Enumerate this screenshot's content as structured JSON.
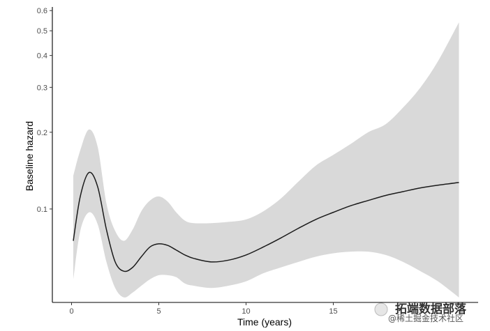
{
  "chart_data": {
    "type": "line",
    "xlabel": "Time (years)",
    "ylabel": "Baseline hazard",
    "y_scale": "log",
    "xlim": [
      -1.1,
      23.3
    ],
    "ylim": [
      0.043,
      0.62
    ],
    "x_ticks": [
      0,
      5,
      10,
      15
    ],
    "x_tick_labels": [
      "0",
      "5",
      "10",
      "15"
    ],
    "y_ticks": [
      0.1,
      0.2,
      0.3,
      0.4,
      0.5,
      0.6
    ],
    "y_tick_labels": [
      "0.1",
      "0.2",
      "0.3",
      "0.4",
      "0.5",
      "0.6"
    ],
    "grid": false,
    "legend": "none",
    "line_color": "#1a1a1a",
    "band_color": "#d9d9d9",
    "series": [
      {
        "x": [
          0.1,
          0.5,
          1.0,
          1.5,
          2.0,
          2.5,
          3.0,
          3.5,
          4.0,
          4.5,
          5.0,
          5.5,
          6.0,
          6.5,
          7.0,
          8.0,
          9.0,
          10.0,
          11.0,
          12.0,
          13.0,
          14.0,
          15.0,
          16.0,
          17.0,
          18.0,
          19.0,
          20.0,
          21.0,
          22.2
        ],
        "y": [
          0.075,
          0.112,
          0.139,
          0.122,
          0.083,
          0.062,
          0.057,
          0.059,
          0.065,
          0.071,
          0.073,
          0.072,
          0.069,
          0.066,
          0.064,
          0.062,
          0.063,
          0.066,
          0.071,
          0.077,
          0.084,
          0.091,
          0.097,
          0.103,
          0.108,
          0.113,
          0.117,
          0.121,
          0.124,
          0.127
        ],
        "lower": [
          0.053,
          0.082,
          0.097,
          0.087,
          0.062,
          0.049,
          0.045,
          0.047,
          0.05,
          0.053,
          0.055,
          0.055,
          0.054,
          0.051,
          0.05,
          0.049,
          0.05,
          0.052,
          0.056,
          0.059,
          0.062,
          0.065,
          0.067,
          0.068,
          0.068,
          0.066,
          0.062,
          0.057,
          0.052,
          0.045
        ],
        "upper": [
          0.135,
          0.17,
          0.205,
          0.175,
          0.105,
          0.082,
          0.075,
          0.083,
          0.098,
          0.108,
          0.112,
          0.107,
          0.097,
          0.09,
          0.088,
          0.088,
          0.089,
          0.091,
          0.098,
          0.11,
          0.128,
          0.148,
          0.163,
          0.18,
          0.2,
          0.215,
          0.25,
          0.3,
          0.38,
          0.54
        ]
      }
    ]
  },
  "watermark": {
    "main": "拓端数据部落",
    "sub": "@稀土掘金技术社区"
  }
}
